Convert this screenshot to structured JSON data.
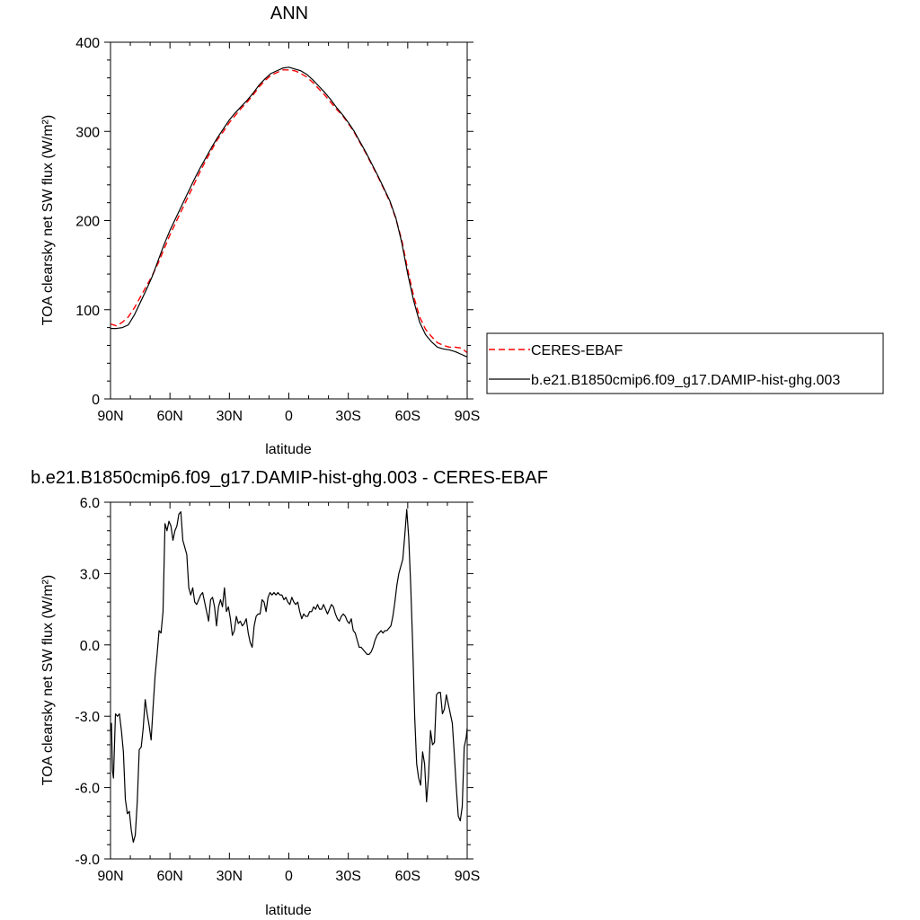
{
  "chart_data": [
    {
      "type": "line",
      "title": "ANN",
      "xlabel": "latitude",
      "ylabel": "TOA clearsky net SW flux (W/m²)",
      "xlim": [
        -90,
        90
      ],
      "ylim": [
        0,
        400
      ],
      "x_ticks": [
        -90,
        -60,
        -30,
        0,
        30,
        60,
        90
      ],
      "x_tick_labels": [
        "90N",
        "60N",
        "30N",
        "0",
        "30S",
        "60S",
        "90S"
      ],
      "y_ticks": [
        0,
        100,
        200,
        300,
        400
      ],
      "y_tick_labels": [
        "0",
        "100",
        "200",
        "300",
        "400"
      ],
      "legend_position": "right",
      "series": [
        {
          "name": "CERES-EBAF",
          "color": "#ff0000",
          "dash": "dashed",
          "x": [
            -90,
            -87,
            -84,
            -81,
            -78,
            -75,
            -72,
            -69,
            -66,
            -63,
            -60,
            -57,
            -54,
            -51,
            -48,
            -45,
            -42,
            -39,
            -36,
            -33,
            -30,
            -27,
            -24,
            -21,
            -18,
            -15,
            -12,
            -9,
            -6,
            -3,
            0,
            3,
            6,
            9,
            12,
            15,
            18,
            21,
            24,
            27,
            30,
            33,
            36,
            39,
            42,
            45,
            48,
            51,
            54,
            57,
            60,
            63,
            66,
            69,
            72,
            75,
            78,
            81,
            84,
            87,
            90
          ],
          "y": [
            84,
            82,
            86,
            92,
            102,
            114,
            126,
            138,
            152,
            168,
            184,
            198,
            212,
            226,
            240,
            254,
            267,
            279,
            291,
            300,
            310,
            318,
            326,
            333,
            341,
            350,
            357,
            363,
            366,
            369,
            369,
            368,
            365,
            361,
            355,
            348,
            341,
            333,
            325,
            318,
            309,
            299,
            287,
            275,
            262,
            249,
            235,
            221,
            202,
            178,
            145,
            115,
            92,
            78,
            70,
            63,
            60,
            58,
            58,
            57,
            52
          ]
        },
        {
          "name": "b.e21.B1850cmip6.f09_g17.DAMIP-hist-ghg.003",
          "color": "#000000",
          "dash": "solid",
          "x": [
            -90,
            -87,
            -84,
            -81,
            -78,
            -75,
            -72,
            -69,
            -66,
            -63,
            -60,
            -57,
            -54,
            -51,
            -48,
            -45,
            -42,
            -39,
            -36,
            -33,
            -30,
            -27,
            -24,
            -21,
            -18,
            -15,
            -12,
            -9,
            -6,
            -3,
            0,
            3,
            6,
            9,
            12,
            15,
            18,
            21,
            24,
            27,
            30,
            33,
            36,
            39,
            42,
            45,
            48,
            51,
            54,
            57,
            60,
            63,
            66,
            69,
            72,
            75,
            78,
            81,
            84,
            87,
            90
          ],
          "y": [
            79,
            79,
            80,
            83,
            94,
            108,
            122,
            137,
            155,
            173,
            189,
            203,
            217,
            231,
            245,
            258,
            270,
            282,
            293,
            303,
            313,
            321,
            328,
            335,
            343,
            352,
            359,
            365,
            368,
            371,
            372,
            370,
            368,
            364,
            358,
            351,
            344,
            336,
            327,
            319,
            310,
            300,
            288,
            276,
            263,
            250,
            236,
            222,
            203,
            175,
            140,
            110,
            86,
            72,
            64,
            58,
            56,
            55,
            53,
            50,
            47
          ]
        }
      ]
    },
    {
      "type": "line",
      "title": "b.e21.B1850cmip6.f09_g17.DAMIP-hist-ghg.003 - CERES-EBAF",
      "xlabel": "latitude",
      "ylabel": "TOA clearsky net SW flux (W/m²)",
      "xlim": [
        -90,
        90
      ],
      "ylim": [
        -9,
        6
      ],
      "x_ticks": [
        -90,
        -60,
        -30,
        0,
        30,
        60,
        90
      ],
      "x_tick_labels": [
        "90N",
        "60N",
        "30N",
        "0",
        "30S",
        "60S",
        "90S"
      ],
      "y_ticks": [
        -9,
        -6,
        -3,
        0,
        3,
        6
      ],
      "y_tick_labels": [
        "-9.0",
        "-6.0",
        "-3.0",
        "0.0",
        "3.0",
        "6.0"
      ],
      "series": [
        {
          "color": "#000000",
          "x": [
            -90,
            -89.5,
            -89,
            -88.5,
            -87.5,
            -86.5,
            -85.5,
            -84.5,
            -83.5,
            -82.5,
            -81.5,
            -80.5,
            -79.5,
            -78.5,
            -77.5,
            -76.5,
            -75.5,
            -74.5,
            -73.5,
            -72.5,
            -71.5,
            -70.5,
            -69.5,
            -68.5,
            -67.5,
            -66.5,
            -65.5,
            -64.5,
            -63.5,
            -62.5,
            -61.5,
            -60.5,
            -59.5,
            -58.5,
            -57.5,
            -56.5,
            -55.5,
            -54.5,
            -53.5,
            -52.5,
            -51.5,
            -50.5,
            -49.5,
            -48.5,
            -47.5,
            -46.5,
            -45.5,
            -44.5,
            -43.5,
            -42.5,
            -41.5,
            -40.5,
            -39.5,
            -38.5,
            -37.5,
            -36.5,
            -35.5,
            -34.5,
            -33.5,
            -32.5,
            -31.5,
            -30.5,
            -29.5,
            -28.5,
            -27.5,
            -26.5,
            -25.5,
            -24.5,
            -23.5,
            -22.5,
            -21.5,
            -20.5,
            -19.5,
            -18.5,
            -17.5,
            -16.5,
            -15.5,
            -14.5,
            -13.5,
            -12.5,
            -11.5,
            -10.5,
            -9.5,
            -8.5,
            -7.5,
            -6.5,
            -5.5,
            -4.5,
            -3.5,
            -2.5,
            -1.5,
            -0.5,
            0.5,
            1.5,
            2.5,
            3.5,
            4.5,
            5.5,
            6.5,
            7.5,
            8.5,
            9.5,
            10.5,
            11.5,
            12.5,
            13.5,
            14.5,
            15.5,
            16.5,
            17.5,
            18.5,
            19.5,
            20.5,
            21.5,
            22.5,
            23.5,
            24.5,
            25.5,
            26.5,
            27.5,
            28.5,
            29.5,
            30.5,
            31.5,
            32.5,
            33.5,
            34.5,
            35.5,
            36.5,
            37.5,
            38.5,
            39.5,
            40.5,
            41.5,
            42.5,
            43.5,
            44.5,
            45.5,
            46.5,
            47.5,
            48.5,
            49.5,
            50.5,
            51.5,
            52.5,
            53.5,
            54.5,
            55.5,
            56.5,
            57.5,
            58.5,
            59.5,
            60.5,
            61.5,
            62.5,
            63.5,
            64.5,
            65.5,
            66.5,
            67.5,
            68.5,
            69.5,
            70.5,
            71.5,
            72.5,
            73.5,
            74.5,
            75.5,
            76.5,
            77.5,
            78.5,
            79.5,
            80.5,
            81.5,
            82.5,
            83.5,
            84.5,
            85.5,
            86.5,
            87.5,
            88.5,
            89.5,
            90
          ],
          "y": [
            -3.6,
            -3.3,
            -5.3,
            -5.6,
            -2.9,
            -3.0,
            -2.9,
            -3.6,
            -4.5,
            -6.5,
            -7.1,
            -7.0,
            -7.8,
            -8.3,
            -8.0,
            -6.6,
            -4.4,
            -4.3,
            -3.5,
            -2.3,
            -2.9,
            -3.4,
            -4.0,
            -2.6,
            -1.3,
            -0.4,
            0.6,
            0.5,
            1.4,
            5.1,
            4.8,
            5.2,
            5.0,
            4.4,
            4.8,
            5.0,
            5.5,
            5.6,
            4.4,
            4.1,
            3.8,
            2.4,
            2.1,
            2.4,
            1.8,
            1.7,
            1.9,
            2.1,
            2.2,
            1.8,
            1.4,
            1.0,
            1.9,
            2.0,
            1.6,
            0.8,
            1.6,
            1.9,
            1.6,
            2.4,
            1.4,
            1.6,
            1.1,
            0.4,
            0.6,
            1.2,
            0.9,
            1.0,
            0.8,
            0.9,
            1.1,
            0.5,
            0.1,
            -0.1,
            0.8,
            1.2,
            1.3,
            1.3,
            1.9,
            1.8,
            1.4,
            2.0,
            2.2,
            2.1,
            2.2,
            2.1,
            2.2,
            2.1,
            2.1,
            1.9,
            2.0,
            1.8,
            1.7,
            2.0,
            1.8,
            1.7,
            1.8,
            1.4,
            1.1,
            1.3,
            1.2,
            1.2,
            1.4,
            1.4,
            1.6,
            1.5,
            1.7,
            1.5,
            1.5,
            1.7,
            1.5,
            1.3,
            1.5,
            1.7,
            1.6,
            1.3,
            1.1,
            1.0,
            1.2,
            1.3,
            1.2,
            1.0,
            0.9,
            1.1,
            0.6,
            0.5,
            0.2,
            -0.1,
            -0.1,
            -0.2,
            -0.3,
            -0.4,
            -0.4,
            -0.3,
            -0.1,
            0.2,
            0.4,
            0.5,
            0.6,
            0.5,
            0.6,
            0.6,
            0.7,
            0.8,
            1.2,
            1.8,
            2.5,
            3.0,
            3.3,
            3.6,
            4.6,
            5.7,
            4.5,
            2.5,
            0.0,
            -3.0,
            -5.0,
            -5.6,
            -5.9,
            -4.5,
            -5.0,
            -6.6,
            -5.5,
            -3.6,
            -4.2,
            -4.1,
            -2.1,
            -2.0,
            -2.0,
            -2.9,
            -2.7,
            -2.1,
            -2.5,
            -2.9,
            -3.3,
            -4.6,
            -6.0,
            -7.2,
            -7.4,
            -6.8,
            -4.3,
            -3.9,
            -3.5
          ]
        }
      ]
    }
  ]
}
